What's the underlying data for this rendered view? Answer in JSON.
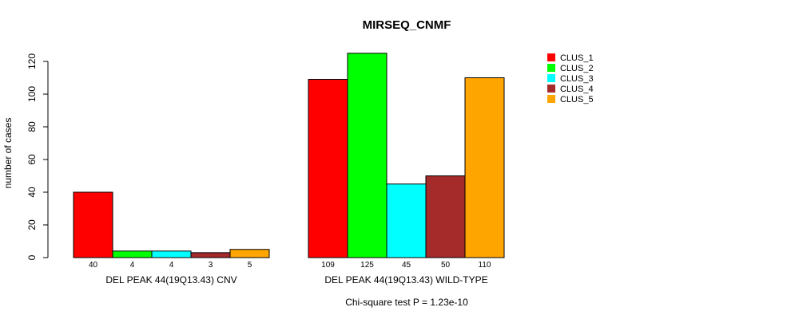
{
  "chart_data": {
    "type": "bar",
    "title": "MIRSEQ_CNMF",
    "ylabel": "number of cases",
    "xlabel": "",
    "ylim": [
      0,
      125
    ],
    "yticks": [
      0,
      20,
      40,
      60,
      80,
      100,
      120
    ],
    "grid": false,
    "legend_position": "top-right",
    "groups": [
      "DEL PEAK 44(19Q13.43) CNV",
      "DEL PEAK 44(19Q13.43) WILD-TYPE"
    ],
    "series": [
      {
        "name": "CLUS_1",
        "color": "#ff0000",
        "values": [
          40,
          109
        ]
      },
      {
        "name": "CLUS_2",
        "color": "#00ff00",
        "values": [
          4,
          125
        ]
      },
      {
        "name": "CLUS_3",
        "color": "#00ffff",
        "values": [
          4,
          45
        ]
      },
      {
        "name": "CLUS_4",
        "color": "#a52a2a",
        "values": [
          3,
          50
        ]
      },
      {
        "name": "CLUS_5",
        "color": "#ffa500",
        "values": [
          5,
          110
        ]
      }
    ],
    "footnote": "Chi-square test P = 1.23e-10"
  }
}
